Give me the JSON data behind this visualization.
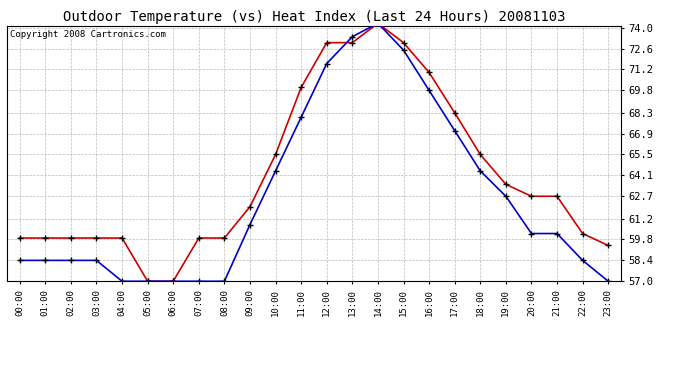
{
  "title": "Outdoor Temperature (vs) Heat Index (Last 24 Hours) 20081103",
  "copyright": "Copyright 2008 Cartronics.com",
  "hours": [
    "00:00",
    "01:00",
    "02:00",
    "03:00",
    "04:00",
    "05:00",
    "06:00",
    "07:00",
    "08:00",
    "09:00",
    "10:00",
    "11:00",
    "12:00",
    "13:00",
    "14:00",
    "15:00",
    "16:00",
    "17:00",
    "18:00",
    "19:00",
    "20:00",
    "21:00",
    "22:00",
    "23:00"
  ],
  "temp": [
    58.4,
    58.4,
    58.4,
    58.4,
    57.0,
    57.0,
    57.0,
    57.0,
    57.0,
    60.8,
    64.4,
    68.0,
    71.6,
    73.4,
    74.3,
    72.5,
    69.8,
    67.1,
    64.4,
    62.7,
    60.2,
    60.2,
    58.4,
    57.0
  ],
  "heat_index": [
    59.9,
    59.9,
    59.9,
    59.9,
    59.9,
    57.0,
    57.0,
    59.9,
    59.9,
    62.0,
    65.5,
    70.0,
    73.0,
    73.0,
    74.3,
    73.0,
    71.0,
    68.3,
    65.5,
    63.5,
    62.7,
    62.7,
    60.2,
    59.4
  ],
  "ylim_min": 57.0,
  "ylim_max": 74.0,
  "yticks": [
    57.0,
    58.4,
    59.8,
    61.2,
    62.7,
    64.1,
    65.5,
    66.9,
    68.3,
    69.8,
    71.2,
    72.6,
    74.0
  ],
  "temp_color": "#0000CC",
  "heat_color": "#CC0000",
  "bg_color": "#FFFFFF",
  "plot_bg": "#FFFFFF",
  "grid_color": "#BBBBBB",
  "title_fontsize": 10,
  "copyright_fontsize": 6.5
}
